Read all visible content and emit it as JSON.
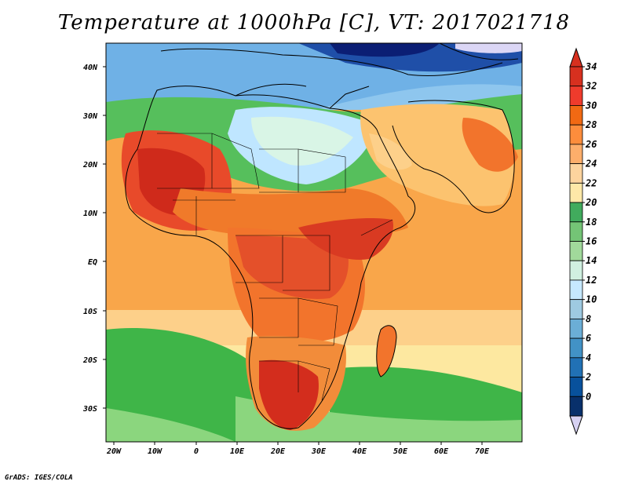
{
  "title": "Temperature at 1000hPa [C], VT: 2017021718",
  "credit": "GrADS: IGES/COLA",
  "map": {
    "lat_labels": [
      "40N",
      "30N",
      "20N",
      "10N",
      "EQ",
      "10S",
      "20S",
      "30S"
    ],
    "lon_labels": [
      "20W",
      "10W",
      "0",
      "10E",
      "20E",
      "30E",
      "40E",
      "50E",
      "60E",
      "70E"
    ]
  },
  "colorbar": {
    "labels": [
      "34",
      "32",
      "30",
      "28",
      "26",
      "24",
      "22",
      "20",
      "18",
      "16",
      "14",
      "12",
      "10",
      "8",
      "6",
      "4",
      "2",
      "0"
    ],
    "colors": [
      "#d7301f",
      "#ef3b2c",
      "#f16913",
      "#fd8d3c",
      "#fdae6b",
      "#fdd49e",
      "#fee8a8",
      "#41ab5d",
      "#74c476",
      "#a1d99b",
      "#d0f0e0",
      "#c6e8ff",
      "#9ecae1",
      "#6baed6",
      "#4292c6",
      "#2171b5",
      "#08519c",
      "#08306b"
    ],
    "over_color": "#d7301f",
    "under_color": "#d6d1f2"
  }
}
